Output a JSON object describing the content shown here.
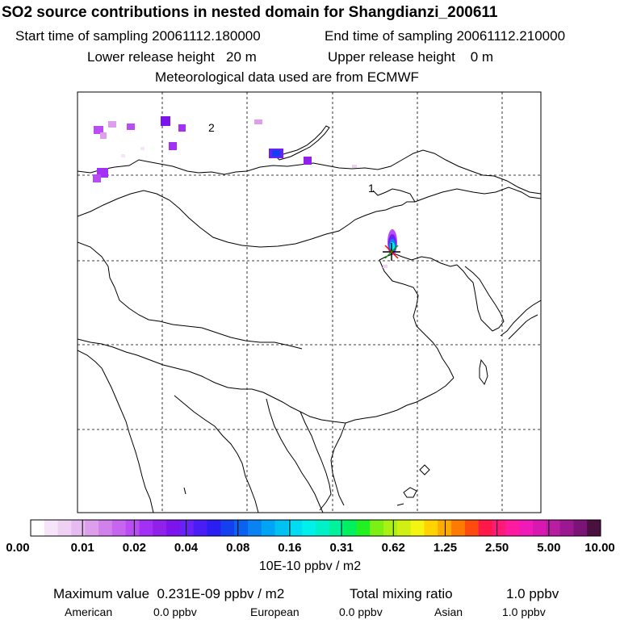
{
  "header": {
    "title": "SO2 source contributions in nested domain for Shangdianzi_200611",
    "start_time": "Start time of sampling 20061112.180000",
    "end_time": "End time of sampling 20061112.210000",
    "lower_release": "Lower release height   20 m",
    "upper_release": "Upper release height    0 m",
    "met_data": "Meteorological data used are from ECMWF"
  },
  "map": {
    "contour_labels": [
      "2",
      "1"
    ],
    "station_marker": "Shangdianzi",
    "icons": [
      "station-star-icon"
    ]
  },
  "colorbar": {
    "tick_labels": [
      "0.00",
      "0.01",
      "0.02",
      "0.04",
      "0.08",
      "0.16",
      "0.31",
      "0.62",
      "1.25",
      "2.50",
      "5.00",
      "10.00"
    ],
    "colors": [
      "#ffffff",
      "#f6e5f8",
      "#eed1f3",
      "#e6bbef",
      "#dd9fec",
      "#d181ec",
      "#c665f0",
      "#b94cf3",
      "#a331f5",
      "#8f21ea",
      "#7c14ec",
      "#6a20f8",
      "#4a1cf6",
      "#2a1ef2",
      "#1441f0",
      "#0b62f0",
      "#0a82f2",
      "#00a4f4",
      "#00c2f2",
      "#00dcf2",
      "#00f0ea",
      "#00f0c8",
      "#00f29c",
      "#00f060",
      "#22f020",
      "#7cf014",
      "#a9f014",
      "#cff012",
      "#f4f410",
      "#ffd200",
      "#ffaa00",
      "#ff7a00",
      "#ff4a10",
      "#ff1848",
      "#ff1a78",
      "#ff1aa0",
      "#f01ab8",
      "#d818b0",
      "#b81ea0",
      "#9c1890",
      "#7c1478",
      "#4a103e"
    ],
    "units": "10E-10 ppbv / m2"
  },
  "stats": {
    "max_label": "Maximum value  0.231E-09 ppbv / m2",
    "total_label": "Total mixing ratio",
    "total_value": "1.0 ppbv",
    "american_label": "American",
    "american_value": "0.0 ppbv",
    "european_label": "European",
    "european_value": "0.0 ppbv",
    "asian_label": "Asian",
    "asian_value": "1.0 ppbv"
  }
}
